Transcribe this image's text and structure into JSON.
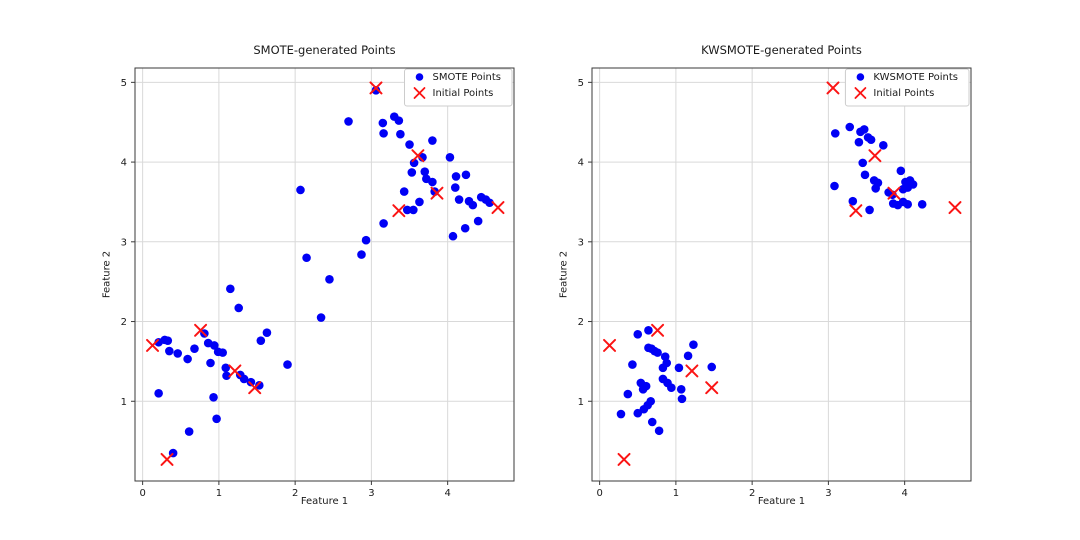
{
  "figure": {
    "background": "#ffffff",
    "text_color": "#1a1a1a",
    "grid_color": "#d9d9d9",
    "spine_color": "#3a3a3a",
    "smote_color": "#0000f5",
    "initial_color": "#fb1414"
  },
  "chart_data": [
    {
      "type": "scatter",
      "title": "SMOTE-generated Points",
      "xlabel": "Feature 1",
      "ylabel": "Feature 2",
      "xlim": [
        -0.1,
        4.87
      ],
      "ylim": [
        0.0,
        5.18
      ],
      "xticks": [
        0,
        1,
        2,
        3,
        4
      ],
      "yticks": [
        1,
        2,
        3,
        4,
        5
      ],
      "grid": true,
      "legend_position": "upper right",
      "series": [
        {
          "name": "SMOTE Points",
          "marker": "circle",
          "color": "#0000f5",
          "points": [
            [
              0.21,
              1.74
            ],
            [
              0.29,
              1.77
            ],
            [
              0.33,
              1.76
            ],
            [
              0.35,
              1.63
            ],
            [
              0.46,
              1.6
            ],
            [
              0.59,
              1.53
            ],
            [
              0.68,
              1.66
            ],
            [
              0.81,
              1.85
            ],
            [
              0.86,
              1.73
            ],
            [
              0.94,
              1.7
            ],
            [
              0.99,
              1.62
            ],
            [
              1.05,
              1.61
            ],
            [
              0.89,
              1.48
            ],
            [
              1.09,
              1.42
            ],
            [
              1.1,
              1.32
            ],
            [
              1.28,
              1.33
            ],
            [
              1.33,
              1.28
            ],
            [
              1.42,
              1.24
            ],
            [
              1.53,
              1.2
            ],
            [
              0.21,
              1.1
            ],
            [
              0.93,
              1.05
            ],
            [
              0.97,
              0.78
            ],
            [
              0.61,
              0.62
            ],
            [
              0.4,
              0.35
            ],
            [
              1.15,
              2.41
            ],
            [
              1.26,
              2.17
            ],
            [
              1.63,
              1.86
            ],
            [
              1.55,
              1.76
            ],
            [
              1.9,
              1.46
            ],
            [
              2.07,
              3.65
            ],
            [
              2.15,
              2.8
            ],
            [
              2.34,
              2.05
            ],
            [
              2.45,
              2.53
            ],
            [
              2.7,
              4.51
            ],
            [
              2.87,
              2.84
            ],
            [
              2.93,
              3.02
            ],
            [
              3.06,
              4.9
            ],
            [
              3.15,
              4.49
            ],
            [
              3.3,
              4.57
            ],
            [
              3.36,
              4.52
            ],
            [
              3.16,
              4.36
            ],
            [
              3.38,
              4.35
            ],
            [
              3.5,
              4.22
            ],
            [
              3.8,
              4.27
            ],
            [
              3.67,
              4.06
            ],
            [
              4.03,
              4.06
            ],
            [
              3.56,
              3.99
            ],
            [
              3.53,
              3.87
            ],
            [
              3.7,
              3.88
            ],
            [
              3.72,
              3.79
            ],
            [
              3.8,
              3.75
            ],
            [
              4.11,
              3.82
            ],
            [
              4.24,
              3.84
            ],
            [
              3.83,
              3.63
            ],
            [
              3.43,
              3.63
            ],
            [
              3.63,
              3.5
            ],
            [
              3.47,
              3.4
            ],
            [
              3.55,
              3.4
            ],
            [
              3.16,
              3.23
            ],
            [
              4.1,
              3.68
            ],
            [
              4.15,
              3.53
            ],
            [
              4.28,
              3.51
            ],
            [
              4.33,
              3.46
            ],
            [
              4.44,
              3.56
            ],
            [
              4.5,
              3.53
            ],
            [
              4.55,
              3.49
            ],
            [
              4.4,
              3.26
            ],
            [
              4.23,
              3.17
            ],
            [
              4.07,
              3.07
            ]
          ]
        },
        {
          "name": "Initial Points",
          "marker": "x",
          "color": "#fb1414",
          "points": [
            [
              0.13,
              1.7
            ],
            [
              0.76,
              1.89
            ],
            [
              1.21,
              1.38
            ],
            [
              1.47,
              1.17
            ],
            [
              0.32,
              0.27
            ],
            [
              3.06,
              4.93
            ],
            [
              3.61,
              4.08
            ],
            [
              3.86,
              3.61
            ],
            [
              3.36,
              3.39
            ],
            [
              4.66,
              3.43
            ]
          ]
        }
      ]
    },
    {
      "type": "scatter",
      "title": "KWSMOTE-generated Points",
      "xlabel": "Feature 1",
      "ylabel": "Feature 2",
      "xlim": [
        -0.1,
        4.87
      ],
      "ylim": [
        0.0,
        5.18
      ],
      "xticks": [
        0,
        1,
        2,
        3,
        4
      ],
      "yticks": [
        1,
        2,
        3,
        4,
        5
      ],
      "grid": true,
      "legend_position": "upper right",
      "series": [
        {
          "name": "KWSMOTE Points",
          "marker": "circle",
          "color": "#0000f5",
          "points": [
            [
              0.5,
              1.84
            ],
            [
              0.64,
              1.89
            ],
            [
              0.64,
              1.67
            ],
            [
              0.68,
              1.66
            ],
            [
              0.72,
              1.63
            ],
            [
              0.76,
              1.61
            ],
            [
              0.43,
              1.46
            ],
            [
              0.86,
              1.56
            ],
            [
              0.88,
              1.48
            ],
            [
              0.83,
              1.42
            ],
            [
              1.23,
              1.71
            ],
            [
              1.16,
              1.57
            ],
            [
              1.47,
              1.43
            ],
            [
              1.04,
              1.42
            ],
            [
              0.83,
              1.28
            ],
            [
              0.89,
              1.23
            ],
            [
              0.94,
              1.17
            ],
            [
              0.54,
              1.23
            ],
            [
              0.61,
              1.19
            ],
            [
              0.57,
              1.15
            ],
            [
              0.37,
              1.09
            ],
            [
              1.07,
              1.15
            ],
            [
              1.08,
              1.03
            ],
            [
              0.67,
              1.0
            ],
            [
              0.28,
              0.84
            ],
            [
              0.5,
              0.85
            ],
            [
              0.58,
              0.9
            ],
            [
              0.63,
              0.95
            ],
            [
              0.69,
              0.74
            ],
            [
              0.78,
              0.63
            ],
            [
              3.09,
              4.36
            ],
            [
              3.28,
              4.44
            ],
            [
              3.42,
              4.38
            ],
            [
              3.47,
              4.41
            ],
            [
              3.52,
              4.31
            ],
            [
              3.4,
              4.25
            ],
            [
              3.56,
              4.28
            ],
            [
              3.72,
              4.21
            ],
            [
              3.45,
              3.99
            ],
            [
              3.48,
              3.84
            ],
            [
              3.08,
              3.7
            ],
            [
              3.6,
              3.77
            ],
            [
              3.65,
              3.74
            ],
            [
              3.62,
              3.67
            ],
            [
              3.95,
              3.89
            ],
            [
              4.01,
              3.75
            ],
            [
              4.07,
              3.77
            ],
            [
              4.11,
              3.72
            ],
            [
              4.04,
              3.68
            ],
            [
              3.98,
              3.66
            ],
            [
              3.79,
              3.62
            ],
            [
              3.84,
              3.59
            ],
            [
              3.32,
              3.51
            ],
            [
              3.85,
              3.48
            ],
            [
              3.91,
              3.46
            ],
            [
              3.98,
              3.5
            ],
            [
              4.04,
              3.47
            ],
            [
              4.23,
              3.47
            ],
            [
              3.54,
              3.4
            ]
          ]
        },
        {
          "name": "Initial Points",
          "marker": "x",
          "color": "#fb1414",
          "points": [
            [
              0.13,
              1.7
            ],
            [
              0.76,
              1.89
            ],
            [
              1.21,
              1.38
            ],
            [
              1.47,
              1.17
            ],
            [
              0.32,
              0.27
            ],
            [
              3.06,
              4.93
            ],
            [
              3.61,
              4.08
            ],
            [
              3.86,
              3.61
            ],
            [
              3.36,
              3.39
            ],
            [
              4.66,
              3.43
            ]
          ]
        }
      ]
    }
  ]
}
